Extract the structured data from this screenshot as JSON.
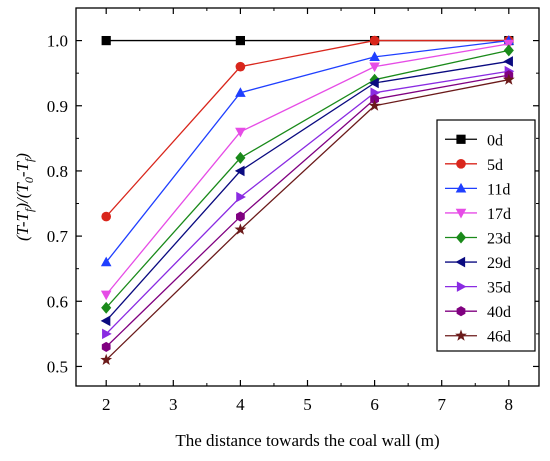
{
  "chart_data": {
    "type": "line",
    "xlabel": "The distance towards the coal wall (m)",
    "ylabel": {
      "parts": [
        {
          "t": "(T-T",
          "sub": null,
          "italic": true
        },
        {
          "t": "f",
          "sub": true,
          "italic": true
        },
        {
          "t": ")/(T",
          "sub": null,
          "italic": true
        },
        {
          "t": "0",
          "sub": true,
          "italic": true
        },
        {
          "t": "-T",
          "sub": null,
          "italic": true
        },
        {
          "t": "f",
          "sub": true,
          "italic": true
        },
        {
          "t": ")",
          "sub": null,
          "italic": true
        }
      ]
    },
    "xlim": [
      1.55,
      8.45
    ],
    "ylim": [
      0.47,
      1.05
    ],
    "xticks": [
      "2",
      "3",
      "4",
      "5",
      "6",
      "7",
      "8"
    ],
    "yticks": [
      "0.5",
      "0.6",
      "0.7",
      "0.8",
      "0.9",
      "1.0"
    ],
    "x": [
      2,
      4,
      6,
      8
    ],
    "legend_position": "right",
    "grid": false,
    "series": [
      {
        "name": "0d",
        "color": "#000000",
        "marker": "square",
        "values": [
          1.0,
          1.0,
          1.0,
          1.0
        ]
      },
      {
        "name": "5d",
        "color": "#d9261c",
        "marker": "circle",
        "values": [
          0.73,
          0.96,
          1.0,
          1.0
        ]
      },
      {
        "name": "11d",
        "color": "#1f3fff",
        "marker": "triangle-up",
        "values": [
          0.66,
          0.92,
          0.975,
          1.0
        ]
      },
      {
        "name": "17d",
        "color": "#e64ce6",
        "marker": "triangle-down",
        "values": [
          0.61,
          0.86,
          0.96,
          0.995
        ]
      },
      {
        "name": "23d",
        "color": "#1a8a1a",
        "marker": "diamond",
        "values": [
          0.59,
          0.82,
          0.94,
          0.985
        ]
      },
      {
        "name": "29d",
        "color": "#0a0a80",
        "marker": "triangle-left",
        "values": [
          0.57,
          0.8,
          0.935,
          0.968
        ]
      },
      {
        "name": "35d",
        "color": "#8a2be2",
        "marker": "triangle-right",
        "values": [
          0.55,
          0.76,
          0.92,
          0.953
        ]
      },
      {
        "name": "40d",
        "color": "#800080",
        "marker": "hexagon",
        "values": [
          0.53,
          0.73,
          0.91,
          0.947
        ]
      },
      {
        "name": "46d",
        "color": "#6b1a1a",
        "marker": "star",
        "values": [
          0.51,
          0.71,
          0.9,
          0.94
        ]
      }
    ]
  }
}
